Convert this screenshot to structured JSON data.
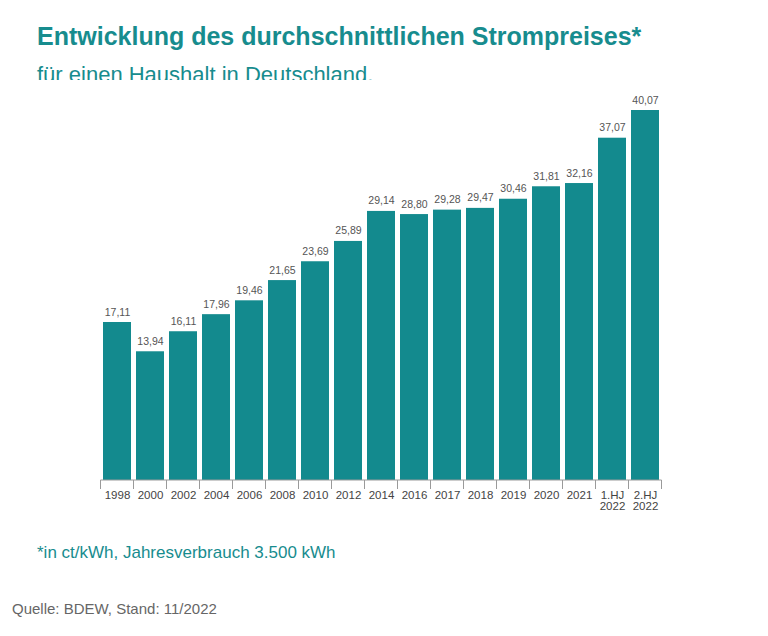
{
  "chart_data": {
    "type": "bar",
    "title": "Entwicklung des durchschnittlichen Strompreises*",
    "subtitle": "für einen Haushalt in Deutschland.",
    "caption": "*in ct/kWh, Jahresverbrauch 3.500 kWh",
    "source": "Quelle: BDEW, Stand: 11/2022",
    "categories": [
      "1998",
      "2000",
      "2002",
      "2004",
      "2006",
      "2008",
      "2010",
      "2012",
      "2014",
      "2016",
      "2017",
      "2018",
      "2019",
      "2020",
      "2021",
      "1.HJ\n2022",
      "2.HJ\n2022"
    ],
    "values": [
      17.11,
      13.94,
      16.11,
      17.96,
      19.46,
      21.65,
      23.69,
      25.89,
      29.14,
      28.8,
      29.28,
      29.47,
      30.46,
      31.81,
      32.16,
      37.07,
      40.07
    ],
    "value_labels": [
      "17,11",
      "13,94",
      "16,11",
      "17,96",
      "19,46",
      "21,65",
      "23,69",
      "25,89",
      "29,14",
      "28,80",
      "29,28",
      "29,47",
      "30,46",
      "31,81",
      "32,16",
      "37,07",
      "40,07"
    ],
    "color": "#138a8e",
    "ylim": [
      0,
      40.07
    ],
    "data_labels": true,
    "tick_labels": "x"
  }
}
